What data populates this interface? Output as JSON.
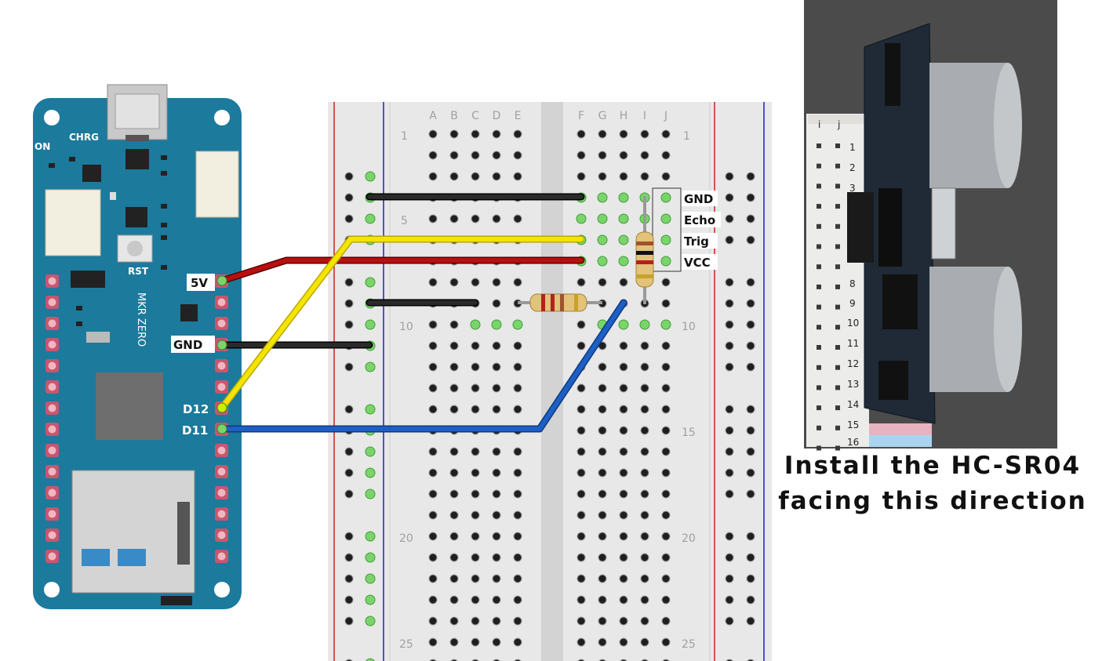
{
  "board": {
    "silk_chrg": "CHRG",
    "silk_on": "ON",
    "silk_rst": "RST",
    "silk_name": "MKR ZERO",
    "pin_5v": "5V",
    "pin_gnd": "GND",
    "pin_d12": "D12",
    "pin_d11": "D11"
  },
  "breadboard": {
    "columns_left": [
      "A",
      "B",
      "C",
      "D",
      "E"
    ],
    "columns_right": [
      "F",
      "G",
      "H",
      "I",
      "J"
    ],
    "row_numbers": [
      "1",
      "5",
      "10",
      "15",
      "20",
      "25"
    ]
  },
  "sensor_labels": {
    "gnd": "GND",
    "echo": "Echo",
    "trig": "Trig",
    "vcc": "VCC"
  },
  "photo": {
    "row_numbers": [
      "1",
      "2",
      "3",
      "8",
      "9",
      "10",
      "11",
      "12",
      "13",
      "14",
      "15",
      "16"
    ],
    "col_letters": [
      "i",
      "j"
    ]
  },
  "caption": {
    "line1": "Install the HC-SR04",
    "line2": "facing this direction"
  },
  "colors": {
    "board": "#1c7a9c",
    "wire_red": "#b80f0f",
    "wire_black": "#1a1a1a",
    "wire_yellow": "#f4e400",
    "wire_blue": "#1d5fc4",
    "breadboard": "#e8e8e8"
  }
}
